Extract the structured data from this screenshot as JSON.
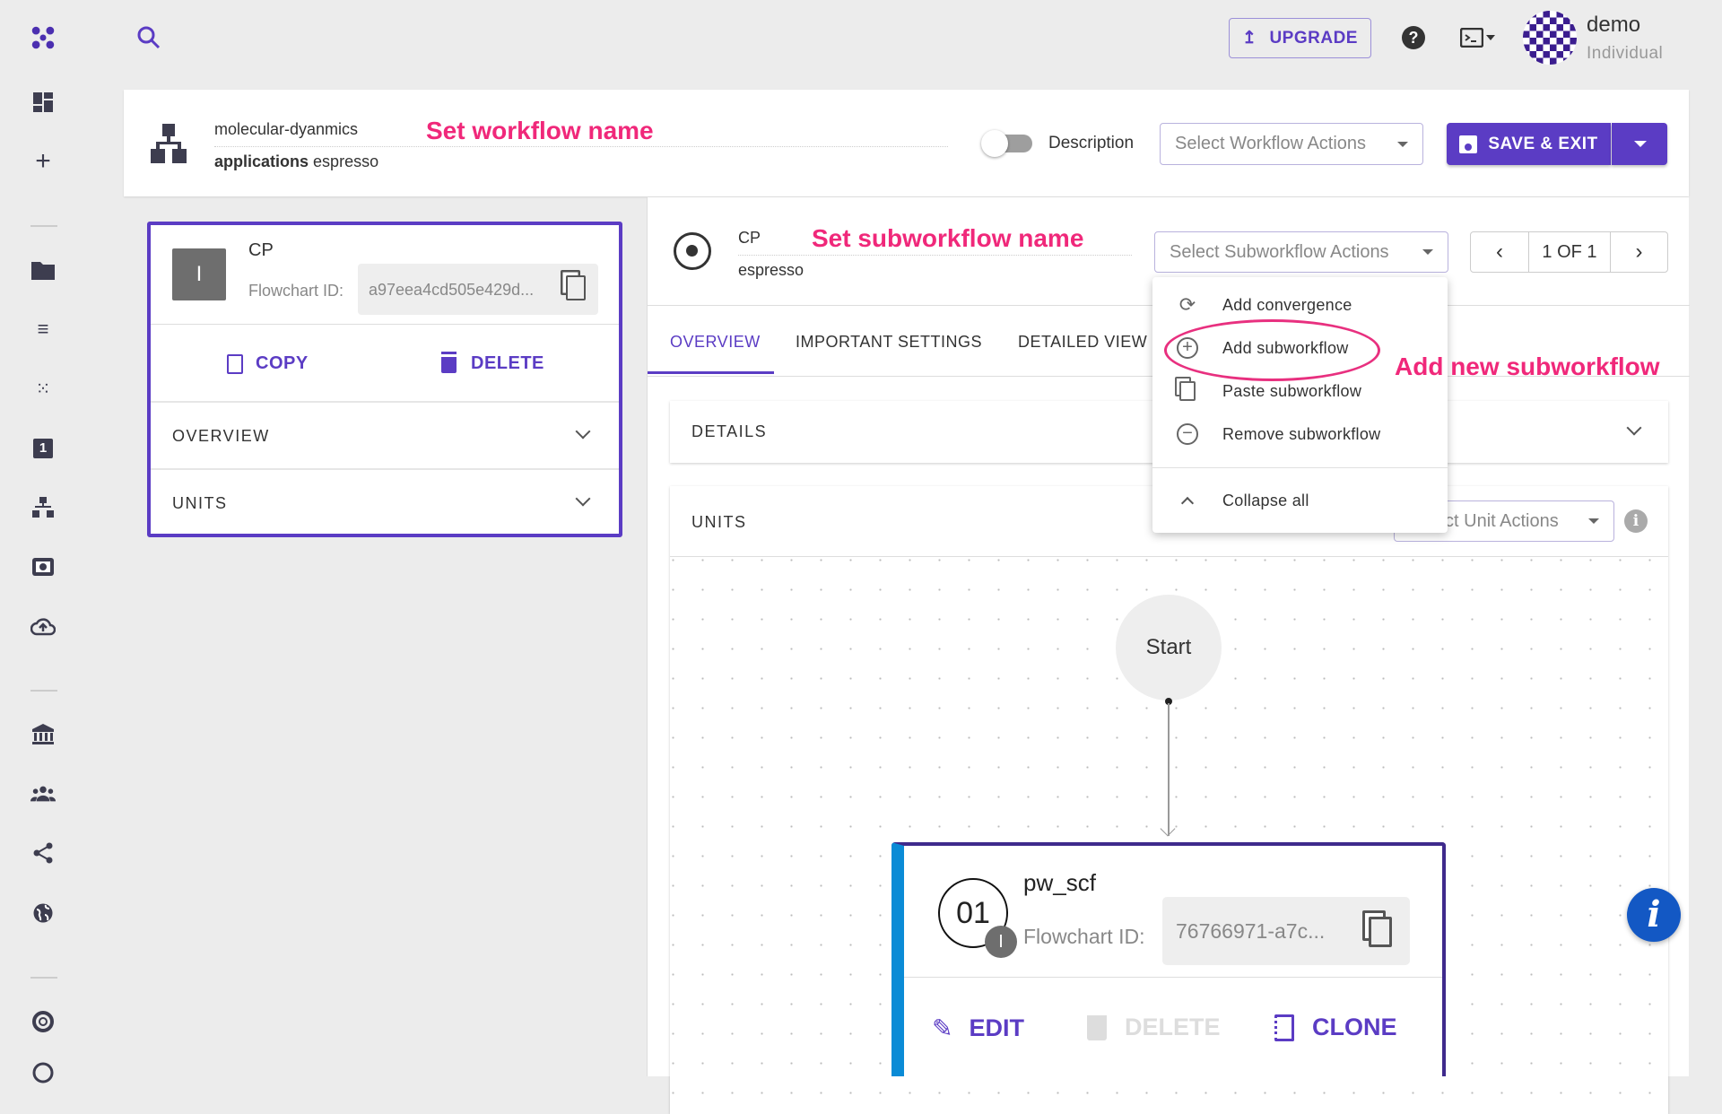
{
  "topbar": {
    "upgrade_label": "UPGRADE",
    "user_name": "demo",
    "user_plan": "Individual"
  },
  "sidebar": {
    "items": [
      "logo-icon",
      "dashboard-icon",
      "add-icon",
      "folder-icon",
      "list-icon",
      "dots-icon",
      "one-icon",
      "workflow-icon",
      "image-icon",
      "cloud-upload-icon",
      "bank-icon",
      "group-icon",
      "share-icon",
      "globe-icon",
      "lifebuoy-icon",
      "settings-icon"
    ]
  },
  "workflow": {
    "name": "molecular-dyanmics",
    "applications_label": "applications",
    "application": "espresso",
    "annotation": "Set workflow name",
    "description_label": "Description",
    "actions_placeholder": "Select Workflow Actions",
    "save_label": "SAVE & EXIT"
  },
  "left_panel": {
    "unit_badge": "I",
    "name": "CP",
    "flowchart_id_label": "Flowchart ID:",
    "flowchart_id": "a97eea4cd505e429d...",
    "copy_label": "COPY",
    "delete_label": "DELETE",
    "sections": [
      "OVERVIEW",
      "UNITS"
    ]
  },
  "subworkflow": {
    "name": "CP",
    "application": "espresso",
    "annotation": "Set subworkflow name",
    "actions_placeholder": "Select Subworkflow Actions",
    "pager": "1 OF 1",
    "tabs": [
      "OVERVIEW",
      "IMPORTANT SETTINGS",
      "DETAILED VIEW"
    ],
    "details_label": "DETAILS",
    "units_label": "UNITS",
    "unit_actions_placeholder": "Select Unit Actions"
  },
  "menu": {
    "items": [
      "Add convergence",
      "Add subworkflow",
      "Paste subworkflow",
      "Remove subworkflow"
    ],
    "collapse_label": "Collapse all",
    "annotation": "Add new subworkflow"
  },
  "flowchart": {
    "start_label": "Start",
    "unit": {
      "index": "01",
      "badge": "I",
      "name": "pw_scf",
      "flowchart_id_label": "Flowchart ID:",
      "flowchart_id": "76766971-a7c...",
      "edit_label": "EDIT",
      "delete_label": "DELETE",
      "clone_label": "CLONE"
    }
  },
  "colors": {
    "accent": "#5b3cc4",
    "annotation": "#f0287a",
    "unit_bar": "#0a8bd6",
    "info": "#1358c4"
  }
}
